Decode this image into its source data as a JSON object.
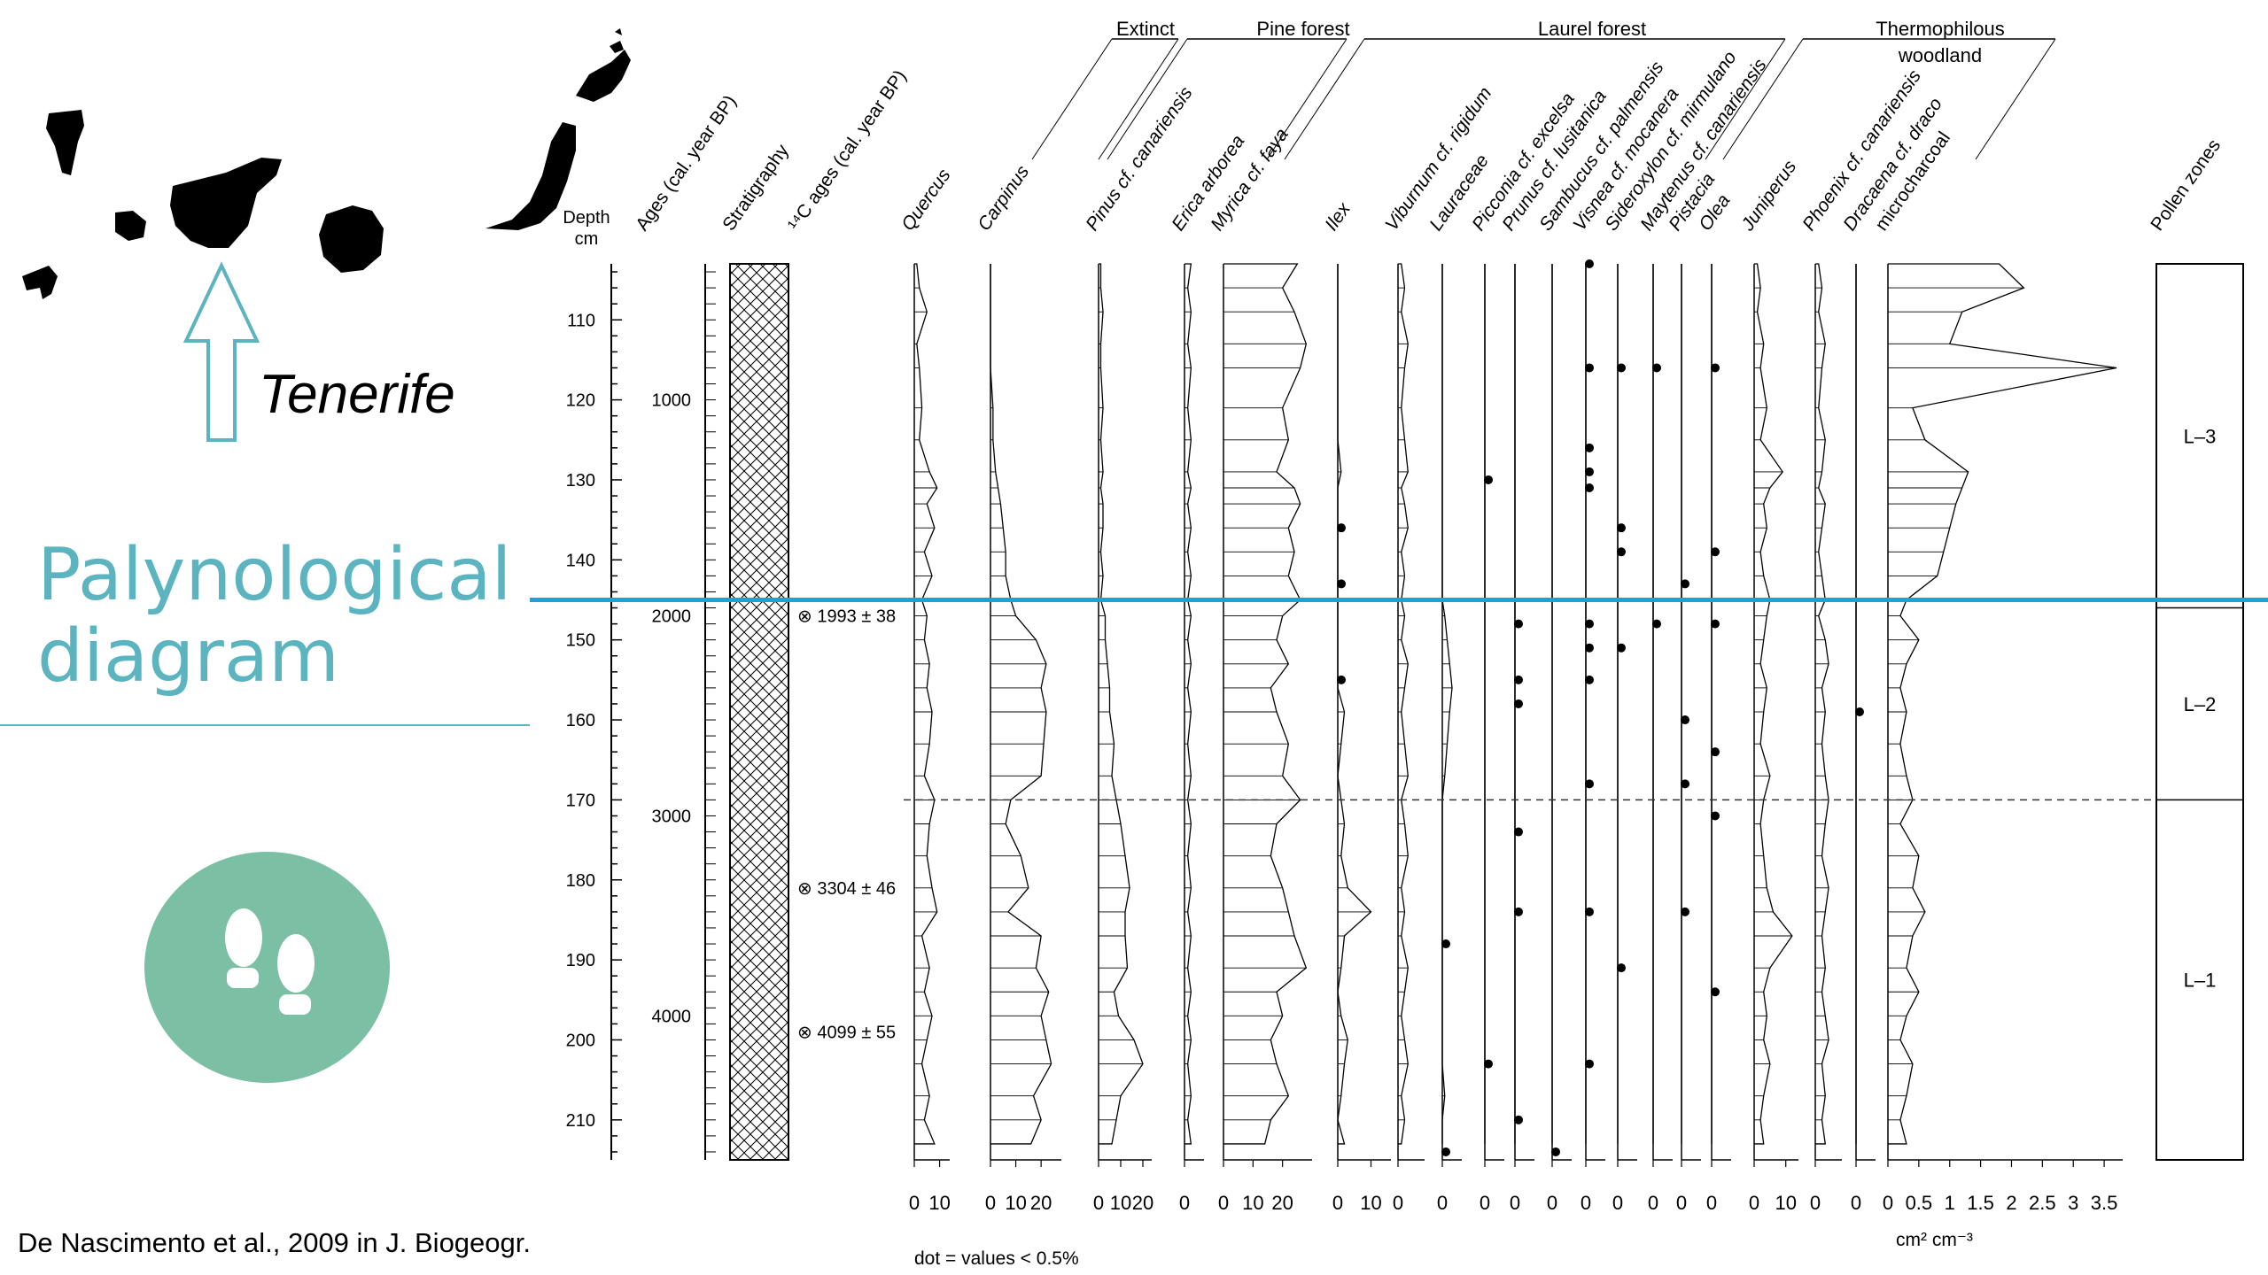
{
  "slide": {
    "title_line1": "Palynological",
    "title_line2": "diagram",
    "map_label": "Tenerife",
    "source": "De Nascimento et al., 2009 in J. Biogeogr.",
    "footnote": "dot = values < 0.5%",
    "charcoal_unit": "cm² cm⁻³",
    "accent_color": "#5bb4bf",
    "line_color": "#1aa3d6",
    "circle_color": "#7bbfa5",
    "icon": "footprints-icon"
  },
  "chart_data": {
    "type": "area",
    "depth_header": [
      "Depth",
      "cm"
    ],
    "depth_ticks": [
      110,
      120,
      130,
      140,
      150,
      160,
      170,
      180,
      190,
      200,
      210
    ],
    "depth_range": [
      103,
      215
    ],
    "age_header": "Ages (cal. year BP)",
    "age_ticks": [
      {
        "age": 1000,
        "depth": 120
      },
      {
        "age": 2000,
        "depth": 147
      },
      {
        "age": 3000,
        "depth": 172
      },
      {
        "age": 4000,
        "depth": 197
      }
    ],
    "stratigraphy_header": "Stratigraphy",
    "c14_header": "¹⁴C ages (cal. year BP)",
    "c14_dates": [
      {
        "depth": 147,
        "label": "1993 ± 38"
      },
      {
        "depth": 181,
        "label": "3304 ± 46"
      },
      {
        "depth": 199,
        "label": "4099 ± 55"
      }
    ],
    "groups": [
      {
        "label": "Extinct"
      },
      {
        "label": "Pine forest"
      },
      {
        "label": "Laurel forest"
      },
      {
        "label": "Thermophilous woodland"
      }
    ],
    "samples_depth": [
      103,
      106,
      109,
      113,
      116,
      121,
      125,
      129,
      131,
      133,
      136,
      139,
      142,
      145,
      147,
      150,
      153,
      156,
      159,
      163,
      167,
      170,
      173,
      177,
      181,
      184,
      187,
      191,
      194,
      197,
      200,
      203,
      207,
      210,
      213
    ],
    "series": [
      {
        "name": "Quercus",
        "ticks": [
          "0",
          "10"
        ],
        "max": 14,
        "values": [
          1,
          2,
          5,
          1,
          2,
          3,
          2,
          6,
          9,
          5,
          8,
          4,
          7,
          3,
          5,
          4,
          6,
          5,
          7,
          6,
          4,
          8,
          6,
          5,
          7,
          9,
          3,
          6,
          4,
          7,
          5,
          3,
          6,
          4,
          8
        ]
      },
      {
        "name": "Carpinus",
        "ticks": [
          "0",
          "10",
          "20"
        ],
        "max": 28,
        "values": [
          0,
          0,
          0,
          0,
          0,
          1,
          1,
          2,
          3,
          4,
          5,
          6,
          6,
          8,
          10,
          18,
          22,
          20,
          22,
          21,
          20,
          8,
          6,
          12,
          15,
          7,
          20,
          18,
          23,
          20,
          22,
          24,
          17,
          20,
          16
        ]
      },
      {
        "name": "Pinus cf. canariensis",
        "ticks": [
          "0",
          "10",
          "20"
        ],
        "max": 24,
        "values": [
          1,
          1,
          2,
          1,
          1,
          2,
          1,
          2,
          1,
          2,
          2,
          1,
          2,
          1,
          3,
          3,
          4,
          5,
          5,
          7,
          6,
          8,
          10,
          12,
          14,
          12,
          12,
          13,
          7,
          9,
          16,
          20,
          10,
          8,
          6
        ]
      },
      {
        "name": "Erica arborea",
        "ticks": [
          "0"
        ],
        "max": 6,
        "values": [
          2,
          1,
          2,
          1,
          2,
          1,
          2,
          1,
          2,
          1,
          2,
          1,
          2,
          1,
          2,
          1,
          2,
          1,
          2,
          1,
          2,
          1,
          2,
          1,
          2,
          1,
          2,
          1,
          2,
          1,
          2,
          1,
          2,
          1,
          2
        ]
      },
      {
        "name": "Myrica cf. faya",
        "ticks": [
          "0",
          "10",
          "20"
        ],
        "max": 30,
        "values": [
          25,
          20,
          24,
          28,
          26,
          20,
          22,
          18,
          24,
          26,
          22,
          24,
          22,
          26,
          20,
          18,
          22,
          16,
          18,
          22,
          20,
          26,
          18,
          16,
          20,
          22,
          24,
          28,
          18,
          20,
          16,
          18,
          22,
          16,
          14
        ]
      },
      {
        "name": "Ilex",
        "ticks": [
          "0",
          "10"
        ],
        "max": 16,
        "dots": [
          136,
          143,
          155
        ],
        "values": [
          0,
          0,
          0,
          0,
          0,
          0,
          0,
          1,
          0,
          0,
          0,
          0,
          0,
          0,
          0,
          0,
          0,
          0,
          2,
          1,
          0,
          1,
          2,
          1,
          3,
          10,
          2,
          1,
          0,
          1,
          3,
          2,
          1,
          0,
          2
        ]
      },
      {
        "name": "Viburnum cf. rigidum",
        "ticks": [
          "0"
        ],
        "max": 8,
        "values": [
          1,
          2,
          1,
          3,
          2,
          1,
          2,
          3,
          1,
          2,
          3,
          1,
          2,
          1,
          2,
          1,
          3,
          2,
          1,
          2,
          3,
          1,
          2,
          3,
          1,
          2,
          1,
          3,
          2,
          1,
          2,
          3,
          1,
          2,
          1
        ]
      },
      {
        "name": "Lauraceae",
        "ticks": [
          "0"
        ],
        "max": 8,
        "dots": [
          188,
          214
        ],
        "values": [
          0,
          0,
          0,
          0,
          0,
          0,
          0,
          0,
          0,
          0,
          0,
          0,
          0,
          0,
          1,
          2,
          3,
          4,
          3,
          2,
          1,
          0,
          0,
          0,
          0,
          0,
          0,
          0,
          0,
          0,
          0,
          0,
          1,
          0,
          0
        ]
      },
      {
        "name": "Picconia cf. excelsa",
        "ticks": [
          "0"
        ],
        "max": 8,
        "dots": [
          130,
          203
        ],
        "values": [
          0,
          0,
          0,
          0,
          0,
          0,
          0,
          0,
          0,
          0,
          0,
          0,
          0,
          0,
          0,
          0,
          0,
          0,
          0,
          0,
          0,
          0,
          0,
          0,
          0,
          0,
          0,
          0,
          0,
          0,
          0,
          0,
          0,
          0,
          0
        ]
      },
      {
        "name": "Prunus cf. lusitanica",
        "ticks": [
          "0"
        ],
        "max": 8,
        "dots": [
          148,
          155,
          158,
          174,
          184,
          210
        ],
        "values": [
          0,
          0,
          0,
          0,
          0,
          0,
          0,
          0,
          0,
          0,
          0,
          0,
          0,
          0,
          0,
          0,
          0,
          0,
          0,
          0,
          0,
          0,
          0,
          0,
          0,
          0,
          0,
          0,
          0,
          0,
          0,
          0,
          0,
          0,
          0
        ]
      },
      {
        "name": "Sambucus cf. palmensis",
        "ticks": [
          "0"
        ],
        "max": 8,
        "dots": [
          214
        ],
        "values": [
          0,
          0,
          0,
          0,
          0,
          0,
          0,
          0,
          0,
          0,
          0,
          0,
          0,
          0,
          0,
          0,
          0,
          0,
          0,
          0,
          0,
          0,
          0,
          0,
          0,
          0,
          0,
          0,
          0,
          0,
          0,
          0,
          0,
          0,
          0
        ]
      },
      {
        "name": "Visnea cf. mocanera",
        "ticks": [
          "0"
        ],
        "max": 8,
        "dots": [
          103,
          116,
          126,
          129,
          131,
          148,
          151,
          155,
          168,
          184,
          203
        ],
        "values": [
          0,
          0,
          0,
          0,
          0,
          0,
          0,
          0,
          0,
          0,
          0,
          0,
          0,
          0,
          0,
          0,
          0,
          0,
          0,
          0,
          0,
          0,
          0,
          0,
          0,
          0,
          0,
          0,
          0,
          0,
          0,
          0,
          0,
          0,
          0
        ]
      },
      {
        "name": "Sideroxylon cf. mirmulano",
        "ticks": [
          "0"
        ],
        "max": 8,
        "dots": [
          116,
          136,
          139,
          151,
          191
        ],
        "values": [
          0,
          0,
          0,
          0,
          0,
          0,
          0,
          0,
          0,
          0,
          0,
          0,
          0,
          0,
          0,
          0,
          0,
          0,
          0,
          0,
          0,
          0,
          0,
          0,
          0,
          0,
          0,
          0,
          0,
          0,
          0,
          0,
          0,
          0,
          0
        ]
      },
      {
        "name": "Maytenus cf. canariensis",
        "ticks": [
          "0"
        ],
        "max": 8,
        "dots": [
          116,
          148
        ],
        "values": [
          0,
          0,
          0,
          0,
          0,
          0,
          0,
          0,
          0,
          0,
          0,
          0,
          0,
          0,
          0,
          0,
          0,
          0,
          0,
          0,
          0,
          0,
          0,
          0,
          0,
          0,
          0,
          0,
          0,
          0,
          0,
          0,
          0,
          0,
          0
        ]
      },
      {
        "name": "Pistacia",
        "ticks": [
          "0"
        ],
        "max": 8,
        "dots": [
          143,
          160,
          168,
          184
        ],
        "values": [
          0,
          0,
          0,
          0,
          0,
          0,
          0,
          0,
          0,
          0,
          0,
          0,
          0,
          0,
          0,
          0,
          0,
          0,
          0,
          0,
          0,
          0,
          0,
          0,
          0,
          0,
          0,
          0,
          0,
          0,
          0,
          0,
          0,
          0,
          0
        ]
      },
      {
        "name": "Olea",
        "ticks": [
          "0"
        ],
        "max": 8,
        "dots": [
          116,
          139,
          148,
          164,
          172,
          194
        ],
        "values": [
          0,
          0,
          0,
          0,
          0,
          0,
          0,
          0,
          0,
          0,
          0,
          0,
          0,
          0,
          0,
          0,
          0,
          0,
          0,
          0,
          0,
          0,
          0,
          0,
          0,
          0,
          0,
          0,
          0,
          0,
          0,
          0,
          0,
          0,
          0
        ]
      },
      {
        "name": "Juniperus",
        "ticks": [
          "0",
          "10"
        ],
        "max": 14,
        "values": [
          1,
          2,
          1,
          3,
          2,
          4,
          2,
          9,
          5,
          3,
          4,
          2,
          3,
          5,
          4,
          3,
          2,
          4,
          3,
          2,
          5,
          3,
          2,
          3,
          4,
          6,
          12,
          5,
          3,
          4,
          3,
          5,
          3,
          2,
          3
        ]
      },
      {
        "name": "Phoenix cf. canariensis",
        "ticks": [
          "0"
        ],
        "max": 8,
        "values": [
          1,
          2,
          1,
          3,
          2,
          1,
          3,
          2,
          1,
          3,
          2,
          1,
          2,
          3,
          1,
          3,
          4,
          2,
          3,
          2,
          3,
          4,
          3,
          2,
          4,
          3,
          2,
          3,
          2,
          3,
          4,
          2,
          3,
          2,
          3
        ]
      },
      {
        "name": "Dracaena cf. draco",
        "ticks": [
          "0"
        ],
        "max": 8,
        "dots": [
          159
        ],
        "values": [
          0,
          0,
          0,
          0,
          0,
          0,
          0,
          0,
          0,
          0,
          0,
          0,
          0,
          0,
          0,
          0,
          0,
          0,
          0,
          0,
          0,
          0,
          0,
          0,
          0,
          0,
          0,
          0,
          0,
          0,
          0,
          0,
          0,
          0,
          0
        ]
      },
      {
        "name": "microcharcoal",
        "ticks": [
          "0",
          "0.5",
          "1",
          "1.5",
          "2",
          "2.5",
          "3",
          "3.5"
        ],
        "max": 3.8,
        "values": [
          1.8,
          2.2,
          1.2,
          1.0,
          3.7,
          0.4,
          0.6,
          1.3,
          1.2,
          1.1,
          1.0,
          0.9,
          0.8,
          0.3,
          0.2,
          0.5,
          0.3,
          0.2,
          0.3,
          0.2,
          0.3,
          0.4,
          0.2,
          0.5,
          0.4,
          0.6,
          0.4,
          0.3,
          0.5,
          0.3,
          0.2,
          0.4,
          0.3,
          0.2,
          0.3
        ]
      }
    ],
    "pollen_zones_header": "Pollen zones",
    "pollen_zones": [
      {
        "label": "L–3",
        "from": 103,
        "to": 146
      },
      {
        "label": "L–2",
        "from": 146,
        "to": 170
      },
      {
        "label": "L–1",
        "from": 170,
        "to": 215
      }
    ],
    "dashed_boundary_depth": 170,
    "highlight_depth": 146
  }
}
